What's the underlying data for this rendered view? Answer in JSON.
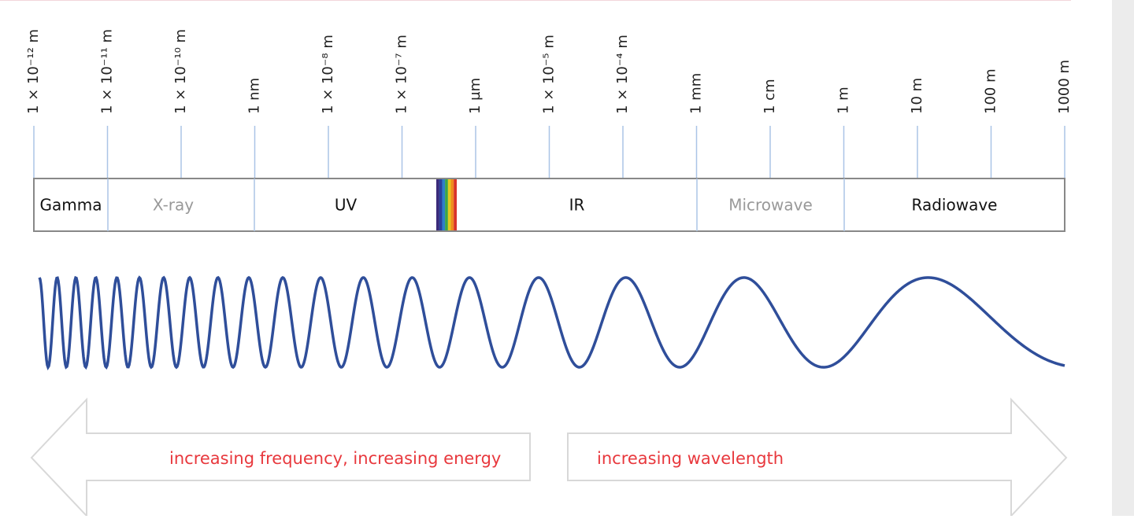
{
  "ticks": [
    "1 × 10⁻¹² m",
    "1 × 10⁻¹¹ m",
    "1 × 10⁻¹⁰ m",
    "1 nm",
    "1 × 10⁻⁸ m",
    "1 × 10⁻⁷ m",
    "1 µm",
    "1 × 10⁻⁵ m",
    "1 × 10⁻⁴ m",
    "1 mm",
    "1 cm",
    "1 m",
    "10 m",
    "100 m",
    "1000 m"
  ],
  "bands": [
    "Gamma",
    "X-ray",
    "UV",
    "IR",
    "Microwave",
    "Radiowave"
  ],
  "arrows": {
    "left": "increasing frequency, increasing energy",
    "right": "increasing wavelength"
  }
}
